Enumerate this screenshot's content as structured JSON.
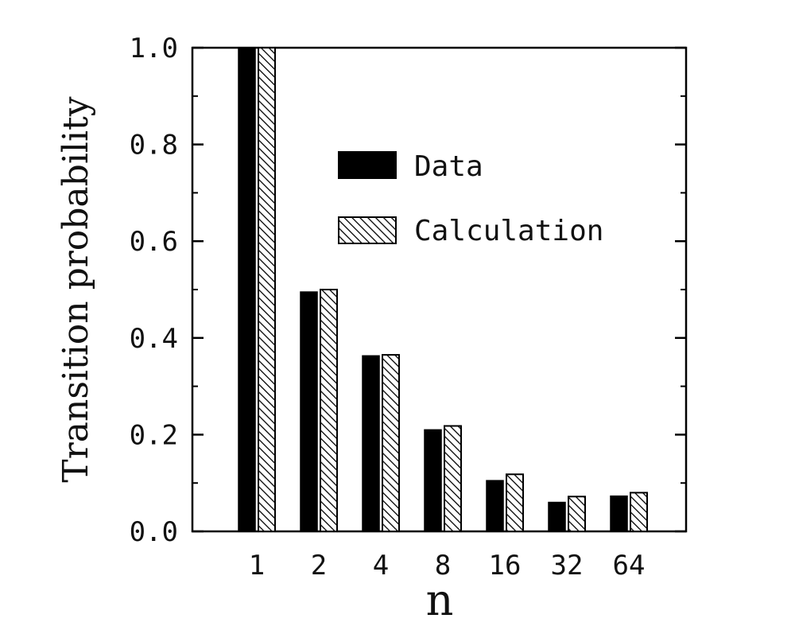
{
  "chart_data": {
    "type": "bar",
    "xlabel": "n",
    "ylabel": "Transition probability",
    "categories": [
      "1",
      "2",
      "4",
      "8",
      "16",
      "32",
      "64"
    ],
    "series": [
      {
        "name": "Data",
        "values": [
          1.0,
          0.495,
          0.363,
          0.21,
          0.105,
          0.06,
          0.073
        ]
      },
      {
        "name": "Calculation",
        "values": [
          1.0,
          0.5,
          0.365,
          0.218,
          0.118,
          0.072,
          0.08
        ]
      }
    ],
    "ylim": [
      0,
      1.0
    ],
    "yticks": [
      "0.0",
      "0.2",
      "0.4",
      "0.6",
      "0.8",
      "1.0"
    ],
    "legend_position": "upper-right",
    "grid": false
  },
  "colors": {
    "data_fill": "#000000",
    "calc_fill": "#ffffff",
    "hatch": "#000000"
  }
}
